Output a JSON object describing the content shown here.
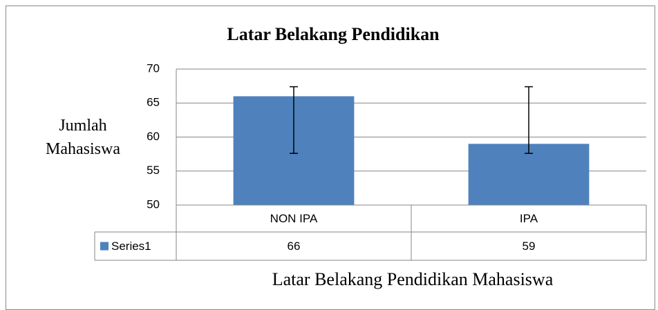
{
  "chart_data": {
    "type": "bar",
    "title": "Latar Belakang Pendidikan",
    "ylabel": "Jumlah Mahasiswa",
    "xlabel": "Latar Belakang Pendidikan Mahasiswa",
    "categories": [
      "NON IPA",
      "IPA"
    ],
    "series": [
      {
        "name": "Series1",
        "color": "#4f81bd",
        "values": [
          66,
          59
        ],
        "errors_minus": [
          8.4,
          1.4
        ],
        "errors_plus": [
          1.4,
          8.4
        ]
      }
    ],
    "ylim": [
      50,
      70
    ],
    "yticks": [
      50,
      55,
      60,
      65,
      70
    ],
    "grid": true,
    "data_table": true
  }
}
